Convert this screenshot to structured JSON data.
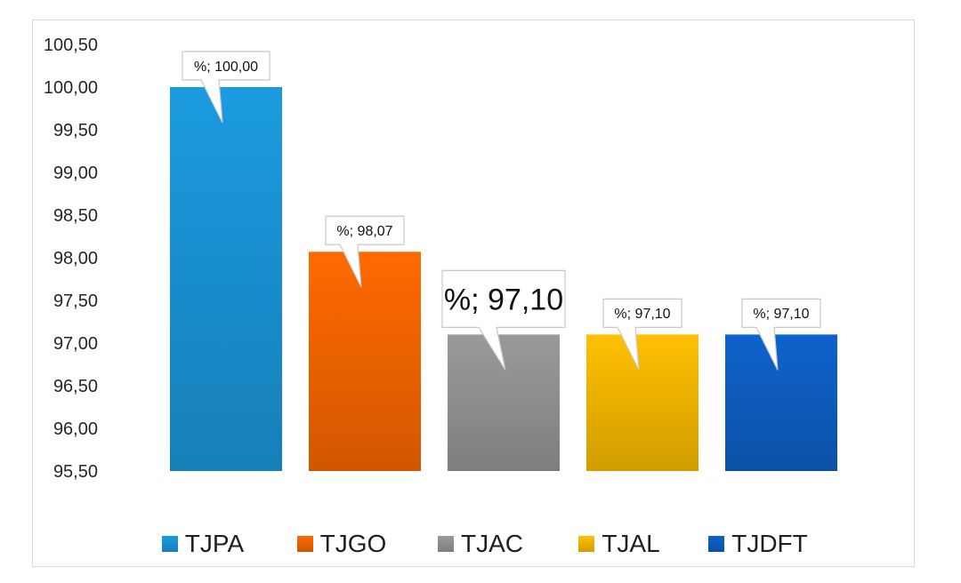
{
  "chart_data": {
    "type": "bar",
    "categories": [
      "TJPA",
      "TJGO",
      "TJAC",
      "TJAL",
      "TJDFT"
    ],
    "values": [
      100.0,
      98.07,
      97.1,
      97.1,
      97.1
    ],
    "data_labels": [
      "%; 100,00",
      "%; 98,07",
      "%; 97,10",
      "%; 97,10",
      "%; 97,10"
    ],
    "emphasized_label_index": 2,
    "ylim": [
      95.5,
      100.5
    ],
    "yticks": [
      "95,50",
      "96,00",
      "96,50",
      "97,00",
      "97,50",
      "98,00",
      "98,50",
      "99,00",
      "99,50",
      "100,00",
      "100,50"
    ],
    "colors": [
      "#1b9be0",
      "#ff6a00",
      "#9a9a9a",
      "#ffc000",
      "#0f63cc"
    ],
    "title": "",
    "xlabel": "",
    "ylabel": "",
    "grid": false,
    "legend_position": "bottom"
  }
}
